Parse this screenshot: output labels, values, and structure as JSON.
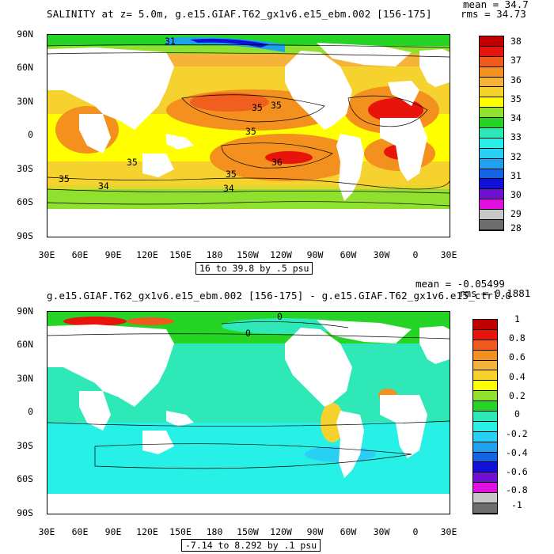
{
  "chart_data": [
    {
      "type": "heatmap",
      "title": "SALINITY at z=   5.0m, g.e15.GIAF.T62_gx1v6.e15_ebm.002 [156-175]",
      "stat_mean": "mean = 34.7",
      "stat_rms": "rms = 34.73",
      "range_label": "16 to 39.8 by .5 psu",
      "y_ticks": [
        "90N",
        "60N",
        "30N",
        "0",
        "30S",
        "60S",
        "90S"
      ],
      "x_ticks": [
        "30E",
        "60E",
        "90E",
        "120E",
        "150E",
        "180",
        "150W",
        "120W",
        "90W",
        "60W",
        "30W",
        "0",
        "30E"
      ],
      "colorbar_ticks": [
        "38",
        "37",
        "36",
        "35",
        "34",
        "33",
        "32",
        "31",
        "30",
        "29",
        "28"
      ],
      "colorbar_colors": [
        "#c00000",
        "#e8140c",
        "#f05a1e",
        "#f3901e",
        "#f6b33a",
        "#f6d22e",
        "#ffff00",
        "#90e030",
        "#26d426",
        "#2ee8b8",
        "#27f0e6",
        "#2ad0f4",
        "#1ea2f0",
        "#1464e6",
        "#1010d8",
        "#7010d0",
        "#e010e0",
        "#c8c8c8",
        "#6e6e6e"
      ],
      "contour_labels": [
        "31",
        "35",
        "35",
        "35",
        "36",
        "35",
        "34",
        "34",
        "35",
        "35"
      ],
      "xlim": [
        "30E",
        "30E"
      ],
      "ylim": [
        "90S",
        "90N"
      ]
    },
    {
      "type": "heatmap",
      "title": "g.e15.GIAF.T62_gx1v6.e15_ebm.002 [156-175] - g.e15.GIAF.T62_gx1v6.e15_ctrl.0",
      "stat_mean": "mean = -0.05499",
      "stat_rms": "rms = 0.1881",
      "range_label": "-7.14 to 8.292 by .1 psu",
      "y_ticks": [
        "90N",
        "60N",
        "30N",
        "0",
        "30S",
        "60S",
        "90S"
      ],
      "x_ticks": [
        "30E",
        "60E",
        "90E",
        "120E",
        "150E",
        "180",
        "150W",
        "120W",
        "90W",
        "60W",
        "30W",
        "0",
        "30E"
      ],
      "colorbar_ticks": [
        "1",
        "0.8",
        "0.6",
        "0.4",
        "0.2",
        "0",
        "-0.2",
        "-0.4",
        "-0.6",
        "-0.8",
        "-1"
      ],
      "colorbar_colors": [
        "#c00000",
        "#e8140c",
        "#f05a1e",
        "#f3901e",
        "#f6b33a",
        "#f6d22e",
        "#ffff00",
        "#90e030",
        "#26d426",
        "#2ee8b8",
        "#27f0e6",
        "#2ad0f4",
        "#1ea2f0",
        "#1464e6",
        "#1010d8",
        "#7010d0",
        "#e010e0",
        "#c8c8c8",
        "#6e6e6e"
      ],
      "contour_labels": [
        "0",
        "0"
      ],
      "xlim": [
        "30E",
        "30E"
      ],
      "ylim": [
        "90S",
        "90N"
      ]
    }
  ]
}
